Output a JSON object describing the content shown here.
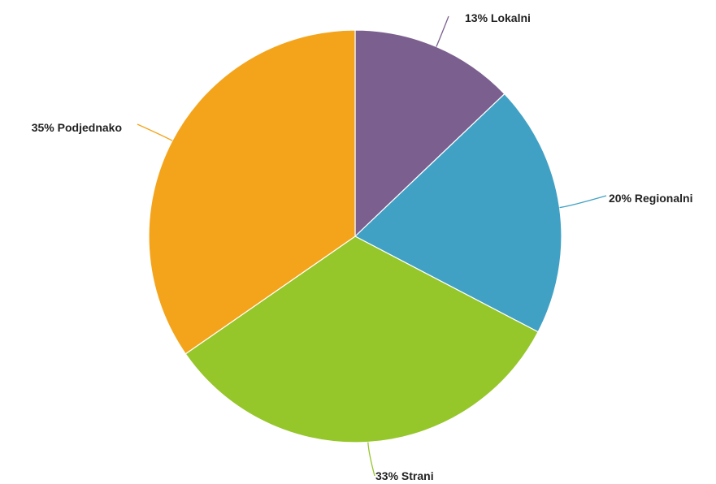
{
  "chart_data": {
    "type": "pie",
    "title": "",
    "legend": "none",
    "slices": [
      {
        "label": "13% Lokalni",
        "value": 13,
        "color": "#7b5f8f"
      },
      {
        "label": "20% Regionalni",
        "value": 20,
        "color": "#41a1c4"
      },
      {
        "label": "33% Strani",
        "value": 33,
        "color": "#95c62a"
      },
      {
        "label": "35% Podjednako",
        "value": 35,
        "color": "#f4a41b"
      }
    ]
  }
}
